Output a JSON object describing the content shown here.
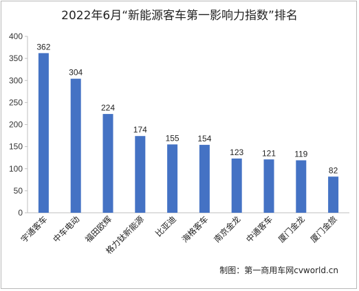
{
  "chart_data": {
    "type": "bar",
    "title": "2022年6月“新能源客车第一影响力指数”排名",
    "categories": [
      "宇通客车",
      "中车电动",
      "福田欧辉",
      "格力钛新能源",
      "比亚迪",
      "海格客车",
      "南京金龙",
      "中通客车",
      "厦门金龙",
      "厦门金旅"
    ],
    "values": [
      362,
      304,
      224,
      174,
      155,
      154,
      123,
      121,
      119,
      82
    ],
    "ylim": [
      0,
      400
    ],
    "yticks": [
      0,
      50,
      100,
      150,
      200,
      250,
      300,
      350,
      400
    ],
    "grid": false,
    "bar_color": "#4472c4"
  },
  "credit": "制图：第一商用车网cvworld.cn"
}
